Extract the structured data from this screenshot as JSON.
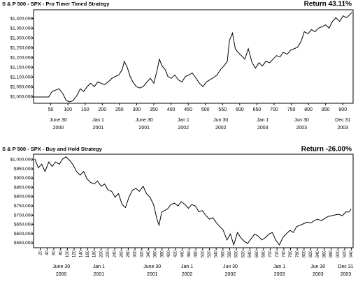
{
  "chart_data": [
    {
      "type": "line",
      "title": "S & P 500 - SPX - Pro Timer Timed Strategy",
      "return_label": "Return 43.11%",
      "color": "#000000",
      "x": [
        0,
        44,
        54,
        74,
        85,
        95,
        105,
        115,
        126,
        136,
        146,
        156,
        166,
        177,
        187,
        207,
        217,
        228,
        238,
        248,
        258,
        264,
        272,
        281,
        289,
        299,
        309,
        319,
        330,
        340,
        350,
        360,
        366,
        374,
        383,
        391,
        401,
        411,
        421,
        432,
        442,
        452,
        462,
        472,
        483,
        493,
        503,
        513,
        523,
        534,
        544,
        554,
        564,
        570,
        579,
        587,
        595,
        605,
        615,
        625,
        636,
        646,
        656,
        666,
        676,
        687,
        697,
        707,
        717,
        727,
        738,
        748,
        758,
        768,
        778,
        788,
        799,
        809,
        819,
        829,
        839,
        850,
        860,
        870,
        880,
        891,
        901,
        911,
        921,
        927
      ],
      "values": [
        1000000,
        1000000,
        1028000,
        1042000,
        1018000,
        982000,
        975000,
        982000,
        1007000,
        1042000,
        1028000,
        1053000,
        1070000,
        1053000,
        1077000,
        1063000,
        1077000,
        1095000,
        1105000,
        1112000,
        1140000,
        1182000,
        1154000,
        1105000,
        1077000,
        1053000,
        1046000,
        1053000,
        1077000,
        1095000,
        1070000,
        1140000,
        1193000,
        1158000,
        1140000,
        1105000,
        1095000,
        1112000,
        1088000,
        1077000,
        1105000,
        1112000,
        1123000,
        1098000,
        1070000,
        1053000,
        1077000,
        1088000,
        1098000,
        1112000,
        1140000,
        1158000,
        1182000,
        1288000,
        1326000,
        1246000,
        1228000,
        1211000,
        1193000,
        1246000,
        1175000,
        1147000,
        1175000,
        1158000,
        1182000,
        1175000,
        1193000,
        1211000,
        1204000,
        1228000,
        1218000,
        1239000,
        1246000,
        1253000,
        1281000,
        1333000,
        1323000,
        1344000,
        1333000,
        1351000,
        1358000,
        1368000,
        1351000,
        1386000,
        1404000,
        1386000,
        1414000,
        1404000,
        1421000,
        1432000
      ],
      "xlim": [
        0,
        930
      ],
      "ylim": [
        968000,
        1445000
      ],
      "xticks": [
        50,
        100,
        150,
        200,
        250,
        300,
        350,
        400,
        450,
        500,
        550,
        600,
        650,
        700,
        750,
        800,
        850,
        900
      ],
      "yticks": [
        {
          "value": 1000000,
          "label": "$1,000,000"
        },
        {
          "value": 1050000,
          "label": "$1,050,000"
        },
        {
          "value": 1100000,
          "label": "$1,100,000"
        },
        {
          "value": 1150000,
          "label": "$1,150,000"
        },
        {
          "value": 1200000,
          "label": "$1,200,000"
        },
        {
          "value": 1250000,
          "label": "$1,250,000"
        },
        {
          "value": 1300000,
          "label": "$1,300,000"
        },
        {
          "value": 1350000,
          "label": "$1,350,000"
        },
        {
          "value": 1400000,
          "label": "$1,400,000"
        }
      ],
      "date_labels": [
        {
          "value": 72,
          "date": "June 30",
          "year": "2000"
        },
        {
          "value": 188,
          "date": "Jan 1",
          "year": "2001"
        },
        {
          "value": 322,
          "date": "June 30",
          "year": "2001"
        },
        {
          "value": 436,
          "date": "Jan 1",
          "year": "2002"
        },
        {
          "value": 545,
          "date": "Jun 30",
          "year": "2002"
        },
        {
          "value": 667,
          "date": "Jan 1",
          "year": "2003"
        },
        {
          "value": 780,
          "date": "Jun 30",
          "year": "2003"
        },
        {
          "value": 900,
          "date": "Dec 31",
          "year": "2003"
        }
      ]
    },
    {
      "type": "line",
      "title": "S & P 500 - SPX - Buy and Hold Strategy",
      "return_label": "Return -26.00%",
      "color": "#000000",
      "x": [
        4,
        14,
        24,
        34,
        45,
        55,
        65,
        76,
        86,
        96,
        107,
        117,
        127,
        138,
        148,
        158,
        169,
        179,
        189,
        200,
        210,
        220,
        231,
        241,
        251,
        262,
        272,
        282,
        293,
        303,
        313,
        324,
        334,
        344,
        355,
        365,
        371,
        379,
        388,
        396,
        406,
        417,
        427,
        437,
        448,
        458,
        468,
        479,
        489,
        499,
        510,
        520,
        530,
        541,
        551,
        561,
        572,
        582,
        592,
        603,
        613,
        623,
        633,
        644,
        654,
        665,
        675,
        685,
        696,
        706,
        716,
        727,
        737,
        747,
        758,
        768,
        778,
        789,
        799,
        809,
        820,
        830,
        840,
        851,
        861,
        871,
        882,
        892,
        902,
        913,
        923,
        933,
        939
      ],
      "values": [
        1004000,
        956000,
        976000,
        937000,
        988000,
        964000,
        988000,
        976000,
        1004000,
        1016000,
        996000,
        972000,
        937000,
        917000,
        937000,
        897000,
        877000,
        869000,
        885000,
        857000,
        869000,
        837000,
        829000,
        798000,
        817000,
        758000,
        742000,
        798000,
        837000,
        845000,
        829000,
        857000,
        817000,
        798000,
        758000,
        679000,
        647000,
        718000,
        726000,
        734000,
        758000,
        766000,
        750000,
        774000,
        758000,
        738000,
        758000,
        750000,
        718000,
        726000,
        698000,
        679000,
        687000,
        659000,
        639000,
        619000,
        567000,
        599000,
        540000,
        607000,
        579000,
        560000,
        548000,
        575000,
        599000,
        587000,
        567000,
        579000,
        599000,
        607000,
        567000,
        540000,
        579000,
        599000,
        619000,
        607000,
        639000,
        647000,
        655000,
        663000,
        659000,
        671000,
        679000,
        671000,
        683000,
        694000,
        698000,
        702000,
        706000,
        698000,
        718000,
        718000,
        734000
      ],
      "xlim": [
        0,
        945
      ],
      "ylim": [
        525000,
        1030000
      ],
      "xticks": [
        20,
        40,
        60,
        80,
        100,
        120,
        140,
        160,
        180,
        200,
        220,
        240,
        260,
        280,
        300,
        320,
        340,
        360,
        380,
        400,
        420,
        440,
        460,
        480,
        500,
        520,
        540,
        560,
        580,
        600,
        620,
        640,
        660,
        680,
        700,
        720,
        740,
        760,
        780,
        800,
        820,
        840,
        860,
        880,
        900,
        920,
        940
      ],
      "yticks": [
        {
          "value": 550000,
          "label": "$550,000"
        },
        {
          "value": 600000,
          "label": "$600,000"
        },
        {
          "value": 650000,
          "label": "$650,000"
        },
        {
          "value": 700000,
          "label": "$700,000"
        },
        {
          "value": 750000,
          "label": "$750,000"
        },
        {
          "value": 800000,
          "label": "$800,000"
        },
        {
          "value": 850000,
          "label": "$850,000"
        },
        {
          "value": 900000,
          "label": "$900,000"
        },
        {
          "value": 950000,
          "label": "$950,000"
        },
        {
          "value": 1000000,
          "label": "$1,000,000"
        }
      ],
      "date_labels": [
        {
          "value": 82,
          "date": "June 30",
          "year": "2000"
        },
        {
          "value": 193,
          "date": "Jan 1",
          "year": "2001"
        },
        {
          "value": 351,
          "date": "June 30",
          "year": "2001"
        },
        {
          "value": 454,
          "date": "Jan 1",
          "year": "2002"
        },
        {
          "value": 582,
          "date": "Jun 30",
          "year": "2002"
        },
        {
          "value": 727,
          "date": "Jan 1",
          "year": "2003"
        },
        {
          "value": 841,
          "date": "Jun 30",
          "year": "2003"
        },
        {
          "value": 923,
          "date": "Dec 31",
          "year": "2003"
        }
      ]
    }
  ]
}
